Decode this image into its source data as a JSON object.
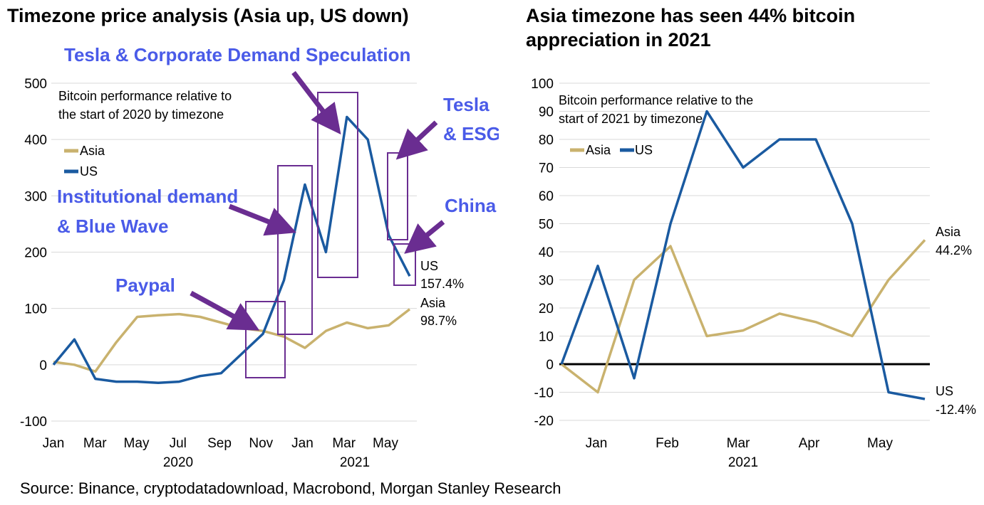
{
  "source": "Source: Binance, cryptodatadownload, Macrobond, Morgan Stanley Research",
  "colors": {
    "asia": "#c9b26e",
    "us": "#1a5aa0",
    "box": "#6a2d91",
    "arrow": "#6a2d91",
    "annotation": "#4a5be8"
  },
  "chart_data": [
    {
      "type": "line",
      "title": "Timezone price analysis (Asia up, US down)",
      "subtitle": "Bitcoin performance relative to the start of 2020 by timezone",
      "ylim": [
        -100,
        500
      ],
      "yticks": [
        "500",
        "400",
        "300",
        "200",
        "100",
        "0",
        "-100"
      ],
      "xtick_labels": [
        "Jan",
        "Mar",
        "May",
        "Jul",
        "Sep",
        "Nov",
        "Jan",
        "Mar",
        "May"
      ],
      "xyear_labels": [
        "2020",
        "2021"
      ],
      "grid": true,
      "legend": "top-left",
      "x": [
        "2020-01",
        "2020-02",
        "2020-03",
        "2020-04",
        "2020-05",
        "2020-06",
        "2020-07",
        "2020-08",
        "2020-09",
        "2020-10",
        "2020-11",
        "2020-12",
        "2021-01",
        "2021-02",
        "2021-03",
        "2021-04",
        "2021-05",
        "2021-06"
      ],
      "series": [
        {
          "name": "Asia",
          "values": [
            5,
            0,
            -12,
            40,
            85,
            88,
            90,
            85,
            75,
            65,
            60,
            50,
            30,
            60,
            75,
            65,
            70,
            98.7
          ]
        },
        {
          "name": "US",
          "values": [
            0,
            45,
            -25,
            -30,
            -30,
            -32,
            -30,
            -20,
            -15,
            20,
            55,
            150,
            320,
            200,
            440,
            400,
            230,
            157.4
          ]
        }
      ],
      "end_labels": [
        {
          "series": "US",
          "name": "US",
          "value": "157.4%"
        },
        {
          "series": "Asia",
          "name": "Asia",
          "value": "98.7%"
        }
      ],
      "annotations": [
        "Tesla & Corporate Demand Speculation",
        "Tesla & ESG",
        "Institutional demand & Blue Wave",
        "China",
        "Paypal"
      ]
    },
    {
      "type": "line",
      "title": "Asia timezone has seen 44% bitcoin appreciation in 2021",
      "subtitle": "Bitcoin performance relative to the start of 2021 by timezone",
      "ylim": [
        -20,
        100
      ],
      "yticks": [
        "100",
        "90",
        "80",
        "70",
        "60",
        "50",
        "40",
        "30",
        "20",
        "10",
        "0",
        "-10",
        "-20"
      ],
      "xtick_labels": [
        "Jan",
        "Feb",
        "Mar",
        "Apr",
        "May"
      ],
      "xyear_labels": [
        "2021"
      ],
      "grid": true,
      "legend": "top-left",
      "x": [
        "2021-01-01",
        "2021-01-15",
        "2021-02-01",
        "2021-02-15",
        "2021-03-01",
        "2021-03-15",
        "2021-04-01",
        "2021-04-15",
        "2021-05-01",
        "2021-05-15",
        "2021-06-01"
      ],
      "series": [
        {
          "name": "Asia",
          "values": [
            0,
            -10,
            30,
            42,
            10,
            12,
            18,
            15,
            10,
            30,
            44.2
          ]
        },
        {
          "name": "US",
          "values": [
            0,
            35,
            -5,
            50,
            90,
            70,
            80,
            80,
            50,
            -10,
            -12.4
          ]
        }
      ],
      "end_labels": [
        {
          "series": "Asia",
          "name": "Asia",
          "value": "44.2%"
        },
        {
          "series": "US",
          "name": "US",
          "value": "-12.4%"
        }
      ]
    }
  ]
}
